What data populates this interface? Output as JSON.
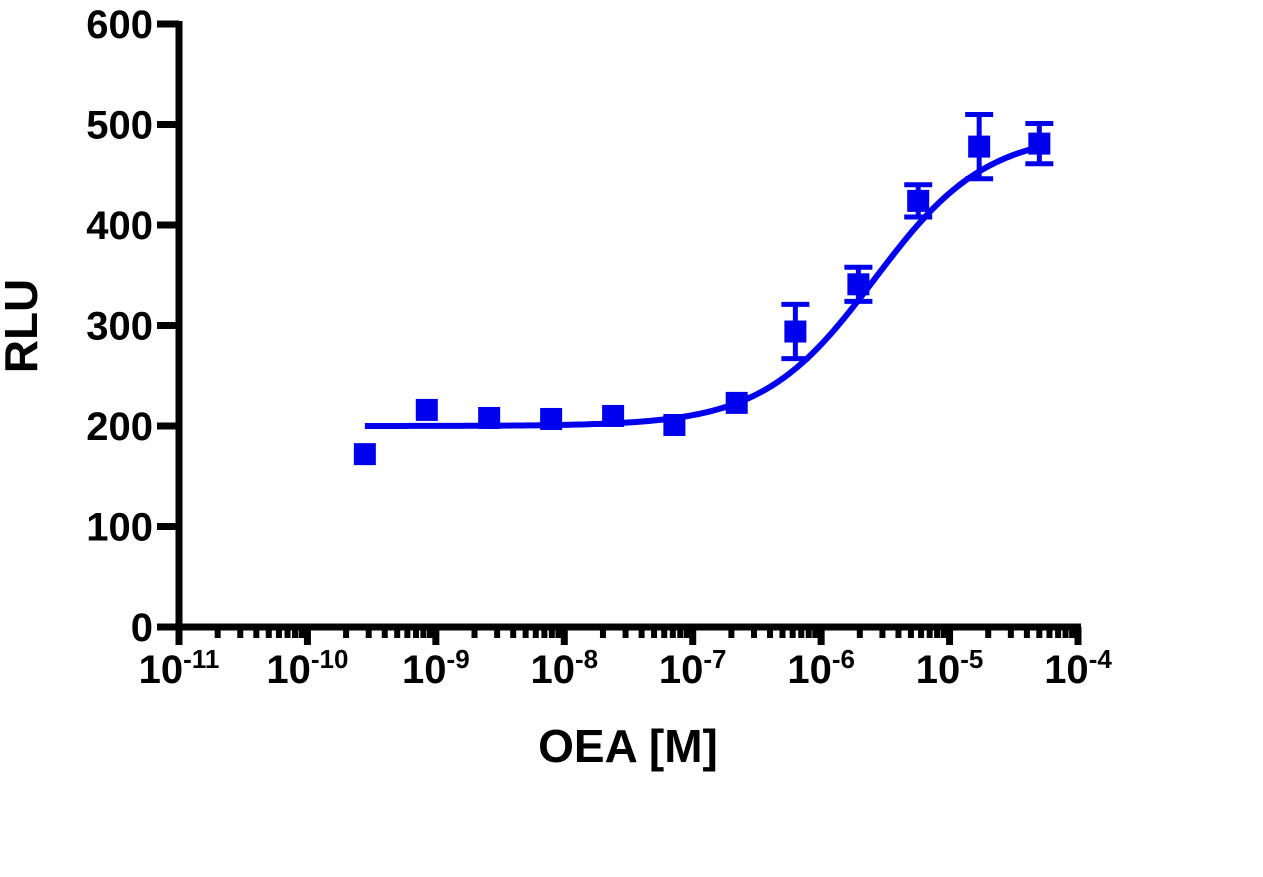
{
  "chart_data": {
    "type": "scatter",
    "title": "",
    "xlabel": "OEA [M]",
    "ylabel": "RLU",
    "xscale": "log",
    "xlim": [
      1e-11,
      0.0001
    ],
    "ylim": [
      0,
      600
    ],
    "xticks": [
      {
        "base": "10",
        "exp": "-11"
      },
      {
        "base": "10",
        "exp": "-10"
      },
      {
        "base": "10",
        "exp": "-9"
      },
      {
        "base": "10",
        "exp": "-8"
      },
      {
        "base": "10",
        "exp": "-7"
      },
      {
        "base": "10",
        "exp": "-6"
      },
      {
        "base": "10",
        "exp": "-5"
      },
      {
        "base": "10",
        "exp": "-4"
      }
    ],
    "yticks": [
      "0",
      "100",
      "200",
      "300",
      "400",
      "500",
      "600"
    ],
    "grid": false,
    "colors": {
      "series": "#0000ee",
      "axis": "#000000"
    },
    "series": [
      {
        "marker": "square",
        "points": [
          {
            "x": 2.8e-10,
            "y": 172
          },
          {
            "x": 8.5e-10,
            "y": 216
          },
          {
            "x": 2.6e-09,
            "y": 208
          },
          {
            "x": 7.9e-09,
            "y": 207
          },
          {
            "x": 2.4e-08,
            "y": 210
          },
          {
            "x": 7.2e-08,
            "y": 201
          },
          {
            "x": 2.2e-07,
            "y": 223
          },
          {
            "x": 6.3e-07,
            "y": 294,
            "err": 27
          },
          {
            "x": 1.95e-06,
            "y": 341,
            "err": 17
          },
          {
            "x": 5.7e-06,
            "y": 424,
            "err": 16
          },
          {
            "x": 1.7e-05,
            "y": 478,
            "err": 32
          },
          {
            "x": 5e-05,
            "y": 481,
            "err": 20
          }
        ],
        "fit": {
          "model": "sigmoidal dose-response",
          "bottom": 200,
          "top": 492,
          "ec50": 2.6e-06,
          "hill": 1.0,
          "xmin": 2.8e-10,
          "xmax": 5e-05
        }
      }
    ]
  }
}
